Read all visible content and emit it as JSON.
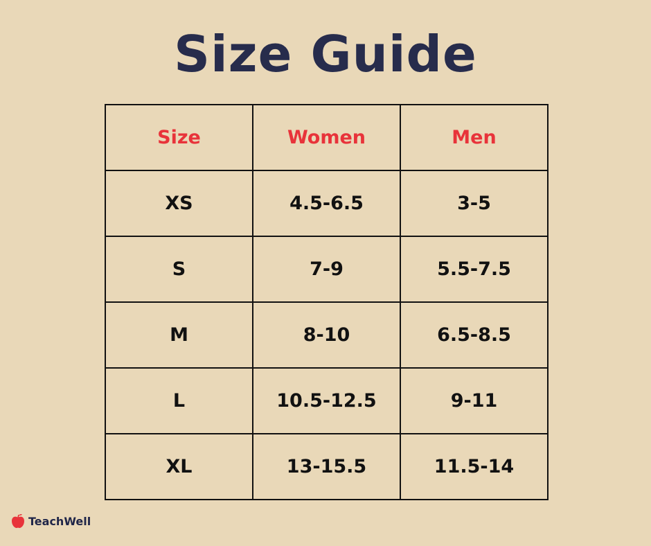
{
  "title": "Size Guide",
  "table": {
    "headers": [
      "Size",
      "Women",
      "Men"
    ],
    "rows": [
      [
        "XS",
        "4.5-6.5",
        "3-5"
      ],
      [
        "S",
        "7-9",
        "5.5-7.5"
      ],
      [
        "M",
        "8-10",
        "6.5-8.5"
      ],
      [
        "L",
        "10.5-12.5",
        "9-11"
      ],
      [
        "XL",
        "13-15.5",
        "11.5-14"
      ]
    ]
  },
  "logo": {
    "text": "TeachWell",
    "icon": "apple-icon"
  },
  "colors": {
    "background": "#e9d8b8",
    "title": "#272c4c",
    "header": "#e8333a",
    "logo_icon": "#e8333a"
  }
}
